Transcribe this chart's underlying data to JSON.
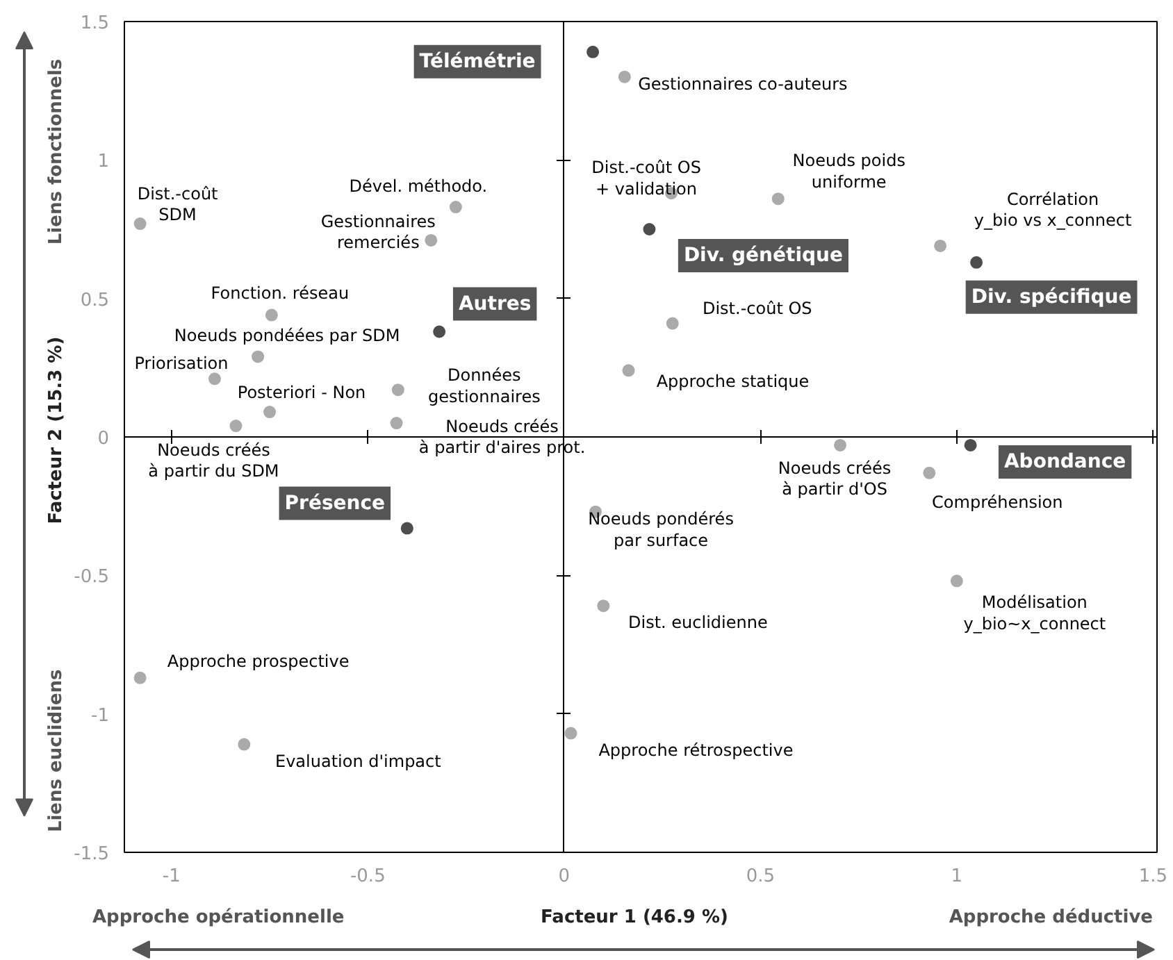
{
  "chart_data": {
    "type": "scatter",
    "xlabel": "Facteur 1 (46.9 %)",
    "ylabel": "Facteur 2 (15.3 %)",
    "marker": "circle",
    "xlim": [
      -1.12,
      1.51
    ],
    "ylim": [
      -1.5,
      1.5
    ],
    "xticks": [
      -1,
      -0.5,
      0,
      0.5,
      1,
      1.5
    ],
    "yticks": [
      -1.5,
      -1,
      -0.5,
      0,
      0.5,
      1,
      1.5
    ],
    "series": [
      {
        "color": "#aaaaaa",
        "x": [
          0.154,
          0.273,
          0.545,
          0.958,
          0.276,
          0.164,
          -1.08,
          -0.276,
          -0.339,
          -0.745,
          -0.78,
          -0.89,
          -0.75,
          -0.836,
          -0.423,
          -0.427,
          0.703,
          0.93,
          0.08,
          0.1,
          1.0,
          -1.08,
          -0.815,
          0.017
        ],
        "values": [
          1.3,
          0.88,
          0.86,
          0.69,
          0.41,
          0.24,
          0.77,
          0.83,
          0.71,
          0.44,
          0.29,
          0.21,
          0.09,
          0.04,
          0.17,
          0.05,
          -0.03,
          -0.13,
          -0.27,
          -0.61,
          -0.52,
          -0.87,
          -1.11,
          -1.07
        ]
      },
      {
        "color": "#4d4d4d",
        "x": [
          0.073,
          0.217,
          1.05,
          -0.318,
          -0.4,
          1.035
        ],
        "values": [
          1.39,
          0.75,
          0.63,
          0.38,
          -0.33,
          -0.03
        ]
      }
    ],
    "annotations": [
      {
        "text": "Télémétrie",
        "x": 0.073,
        "y": 1.39
      },
      {
        "text": "Gestionnaires co-auteurs",
        "x": 0.154,
        "y": 1.3
      },
      {
        "text": "Dist.-coût OS\n+ validation",
        "x": 0.273,
        "y": 0.88
      },
      {
        "text": "Noeuds poids\nuniforme",
        "x": 0.545,
        "y": 0.86
      },
      {
        "text": "Corrélation\ny_bio vs x_connect",
        "x": 0.958,
        "y": 0.69
      },
      {
        "text": "Div. génétique",
        "x": 0.217,
        "y": 0.75
      },
      {
        "text": "Div. spécifique",
        "x": 1.05,
        "y": 0.63
      },
      {
        "text": "Dist.-coût OS",
        "x": 0.276,
        "y": 0.41
      },
      {
        "text": "Approche statique",
        "x": 0.164,
        "y": 0.24
      },
      {
        "text": "Dist.-coût\nSDM",
        "x": -1.08,
        "y": 0.77
      },
      {
        "text": "Dével. méthodo.",
        "x": -0.276,
        "y": 0.83
      },
      {
        "text": "Gestionnaires\nremerciés",
        "x": -0.339,
        "y": 0.71
      },
      {
        "text": "Fonction. réseau",
        "x": -0.745,
        "y": 0.44
      },
      {
        "text": "Autres",
        "x": -0.318,
        "y": 0.38
      },
      {
        "text": "Noeuds pondéées par SDM",
        "x": -0.78,
        "y": 0.29
      },
      {
        "text": "Priorisation",
        "x": -0.89,
        "y": 0.21
      },
      {
        "text": "Posteriori - Non",
        "x": -0.75,
        "y": 0.09
      },
      {
        "text": "Données\ngestionnaires",
        "x": -0.423,
        "y": 0.17
      },
      {
        "text": "Noeuds créés\nà partir d'aires prot.",
        "x": -0.427,
        "y": 0.05
      },
      {
        "text": "Noeuds créés\nà partir du SDM",
        "x": -0.836,
        "y": 0.04
      },
      {
        "text": "Présence",
        "x": -0.4,
        "y": -0.33
      },
      {
        "text": "Noeuds pondérés\npar surface",
        "x": 0.08,
        "y": -0.27
      },
      {
        "text": "Dist. euclidienne",
        "x": 0.1,
        "y": -0.61
      },
      {
        "text": "Modélisation\ny_bio~x_connect",
        "x": 1.0,
        "y": -0.52
      },
      {
        "text": "Approche prospective",
        "x": -1.08,
        "y": -0.87
      },
      {
        "text": "Evaluation d'impact",
        "x": -0.815,
        "y": -1.11
      },
      {
        "text": "Approche rétrospective",
        "x": 0.017,
        "y": -1.07
      },
      {
        "text": "Noeuds créés\nà partir d'OS",
        "x": 0.703,
        "y": -0.03
      },
      {
        "text": "Compréhension",
        "x": 0.93,
        "y": -0.13
      },
      {
        "text": "Abondance",
        "x": 1.035,
        "y": -0.03
      },
      "Approche opérationnelle",
      "Approche déductive",
      "Liens fonctionnels",
      "Liens euclidiens"
    ]
  }
}
